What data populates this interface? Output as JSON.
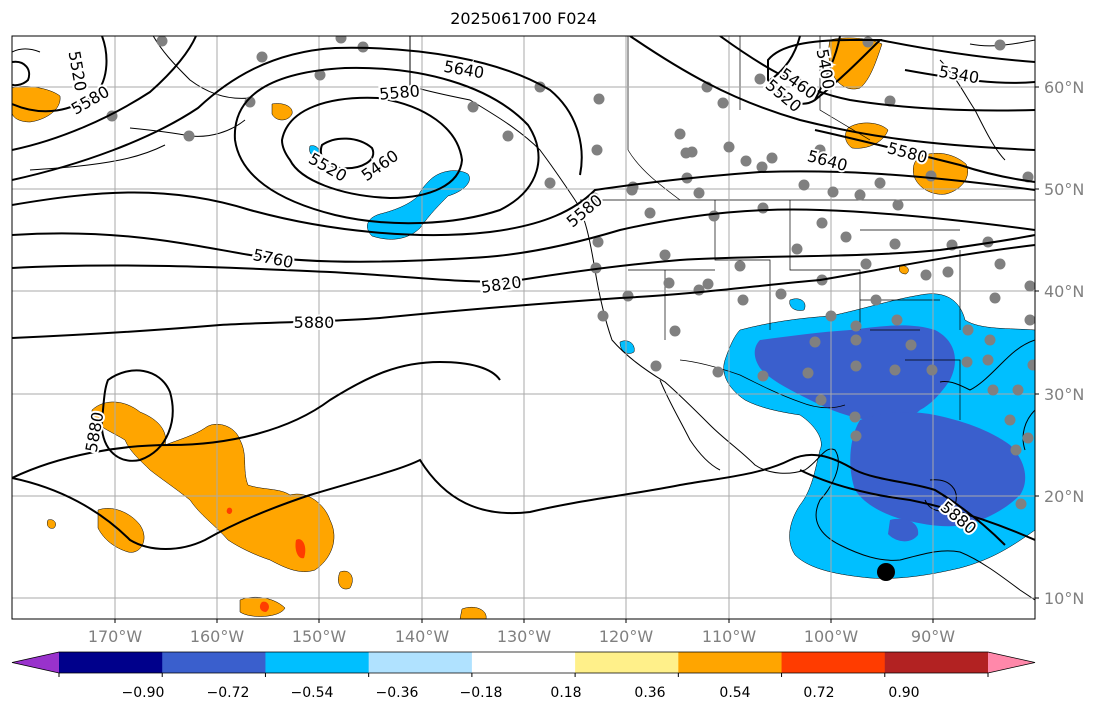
{
  "title": "2025061700 F024",
  "lat_labels": [
    "60°N",
    "50°N",
    "40°N",
    "30°N",
    "20°N",
    "10°N"
  ],
  "lon_labels": [
    "170°W",
    "160°W",
    "150°W",
    "140°W",
    "130°W",
    "120°W",
    "110°W",
    "100°W",
    "90°W"
  ],
  "contour_labels": [
    "5520",
    "5580",
    "5640",
    "5460",
    "5520",
    "5580",
    "5760",
    "5820",
    "5880",
    "5880",
    "5340",
    "5400",
    "5460",
    "5520",
    "5580",
    "5640",
    "5880",
    "5580"
  ],
  "colorbar": {
    "colors": [
      "#9932cc",
      "#00008b",
      "#3a5fcd",
      "#00bfff",
      "#b0e2ff",
      "#ffffff",
      "#fff08a",
      "#ffa500",
      "#ff3c00",
      "#b22222",
      "#ff88aa"
    ],
    "tick_labels": [
      "−0.90",
      "−0.72",
      "−0.54",
      "−0.36",
      "−0.18",
      "0.18",
      "0.36",
      "0.54",
      "0.72",
      "0.90"
    ]
  },
  "colors": {
    "positive": "#ffa500",
    "strong_positive": "#ff3c00",
    "negative": "#00bfff",
    "strong_negative": "#3a5fcd",
    "station_dot": "#808080",
    "marker": "#000000"
  }
}
